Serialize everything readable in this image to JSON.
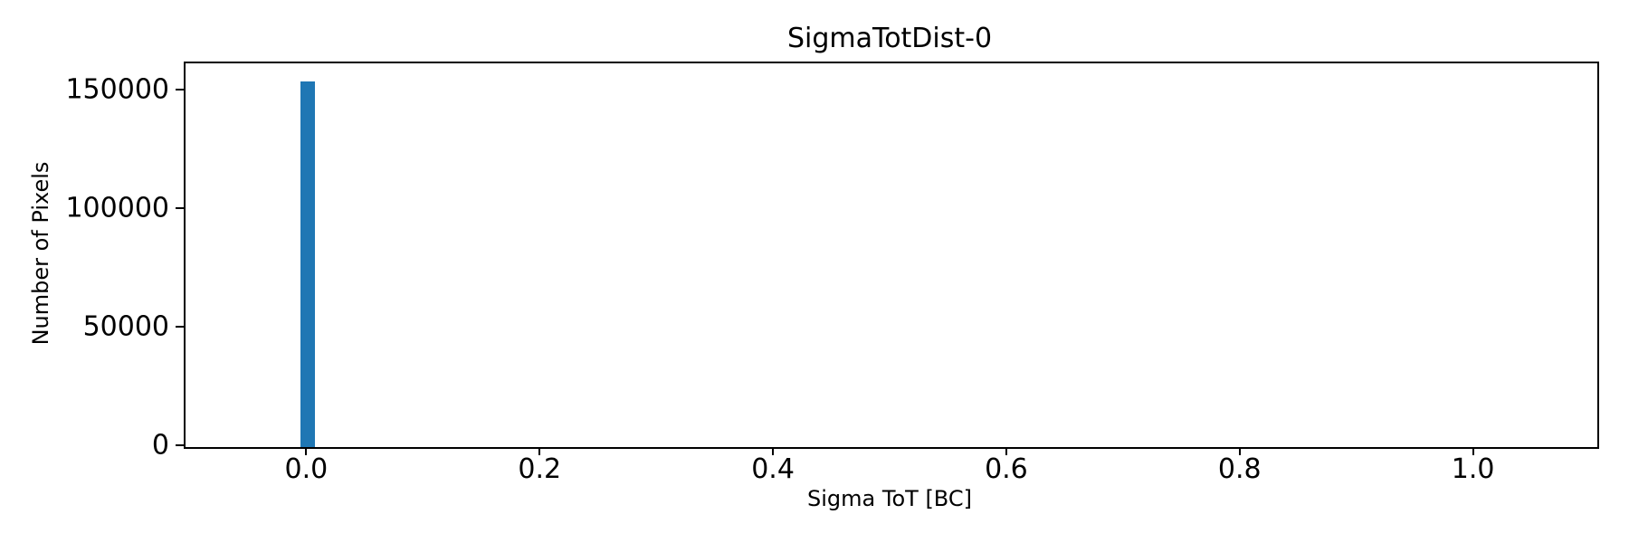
{
  "chart_data": {
    "type": "bar",
    "title": "SigmaTotDist-0",
    "xlabel": "Sigma ToT [BC]",
    "ylabel": "Number of Pixels",
    "xlim": [
      -0.105,
      1.105
    ],
    "ylim": [
      0,
      161700
    ],
    "xticks": [
      {
        "value": 0.0,
        "label": "0.0"
      },
      {
        "value": 0.2,
        "label": "0.2"
      },
      {
        "value": 0.4,
        "label": "0.4"
      },
      {
        "value": 0.6,
        "label": "0.6"
      },
      {
        "value": 0.8,
        "label": "0.8"
      },
      {
        "value": 1.0,
        "label": "1.0"
      }
    ],
    "yticks": [
      {
        "value": 0,
        "label": "0"
      },
      {
        "value": 50000,
        "label": "50000"
      },
      {
        "value": 100000,
        "label": "100000"
      },
      {
        "value": 150000,
        "label": "150000"
      }
    ],
    "bars": [
      {
        "x_center": 0.0,
        "bin_width": 0.0124,
        "count": 154000
      }
    ],
    "bar_color": "#1f77b4",
    "grid": false,
    "legend_position": "none",
    "background_color": "#ffffff",
    "spine_color": "#000000"
  }
}
